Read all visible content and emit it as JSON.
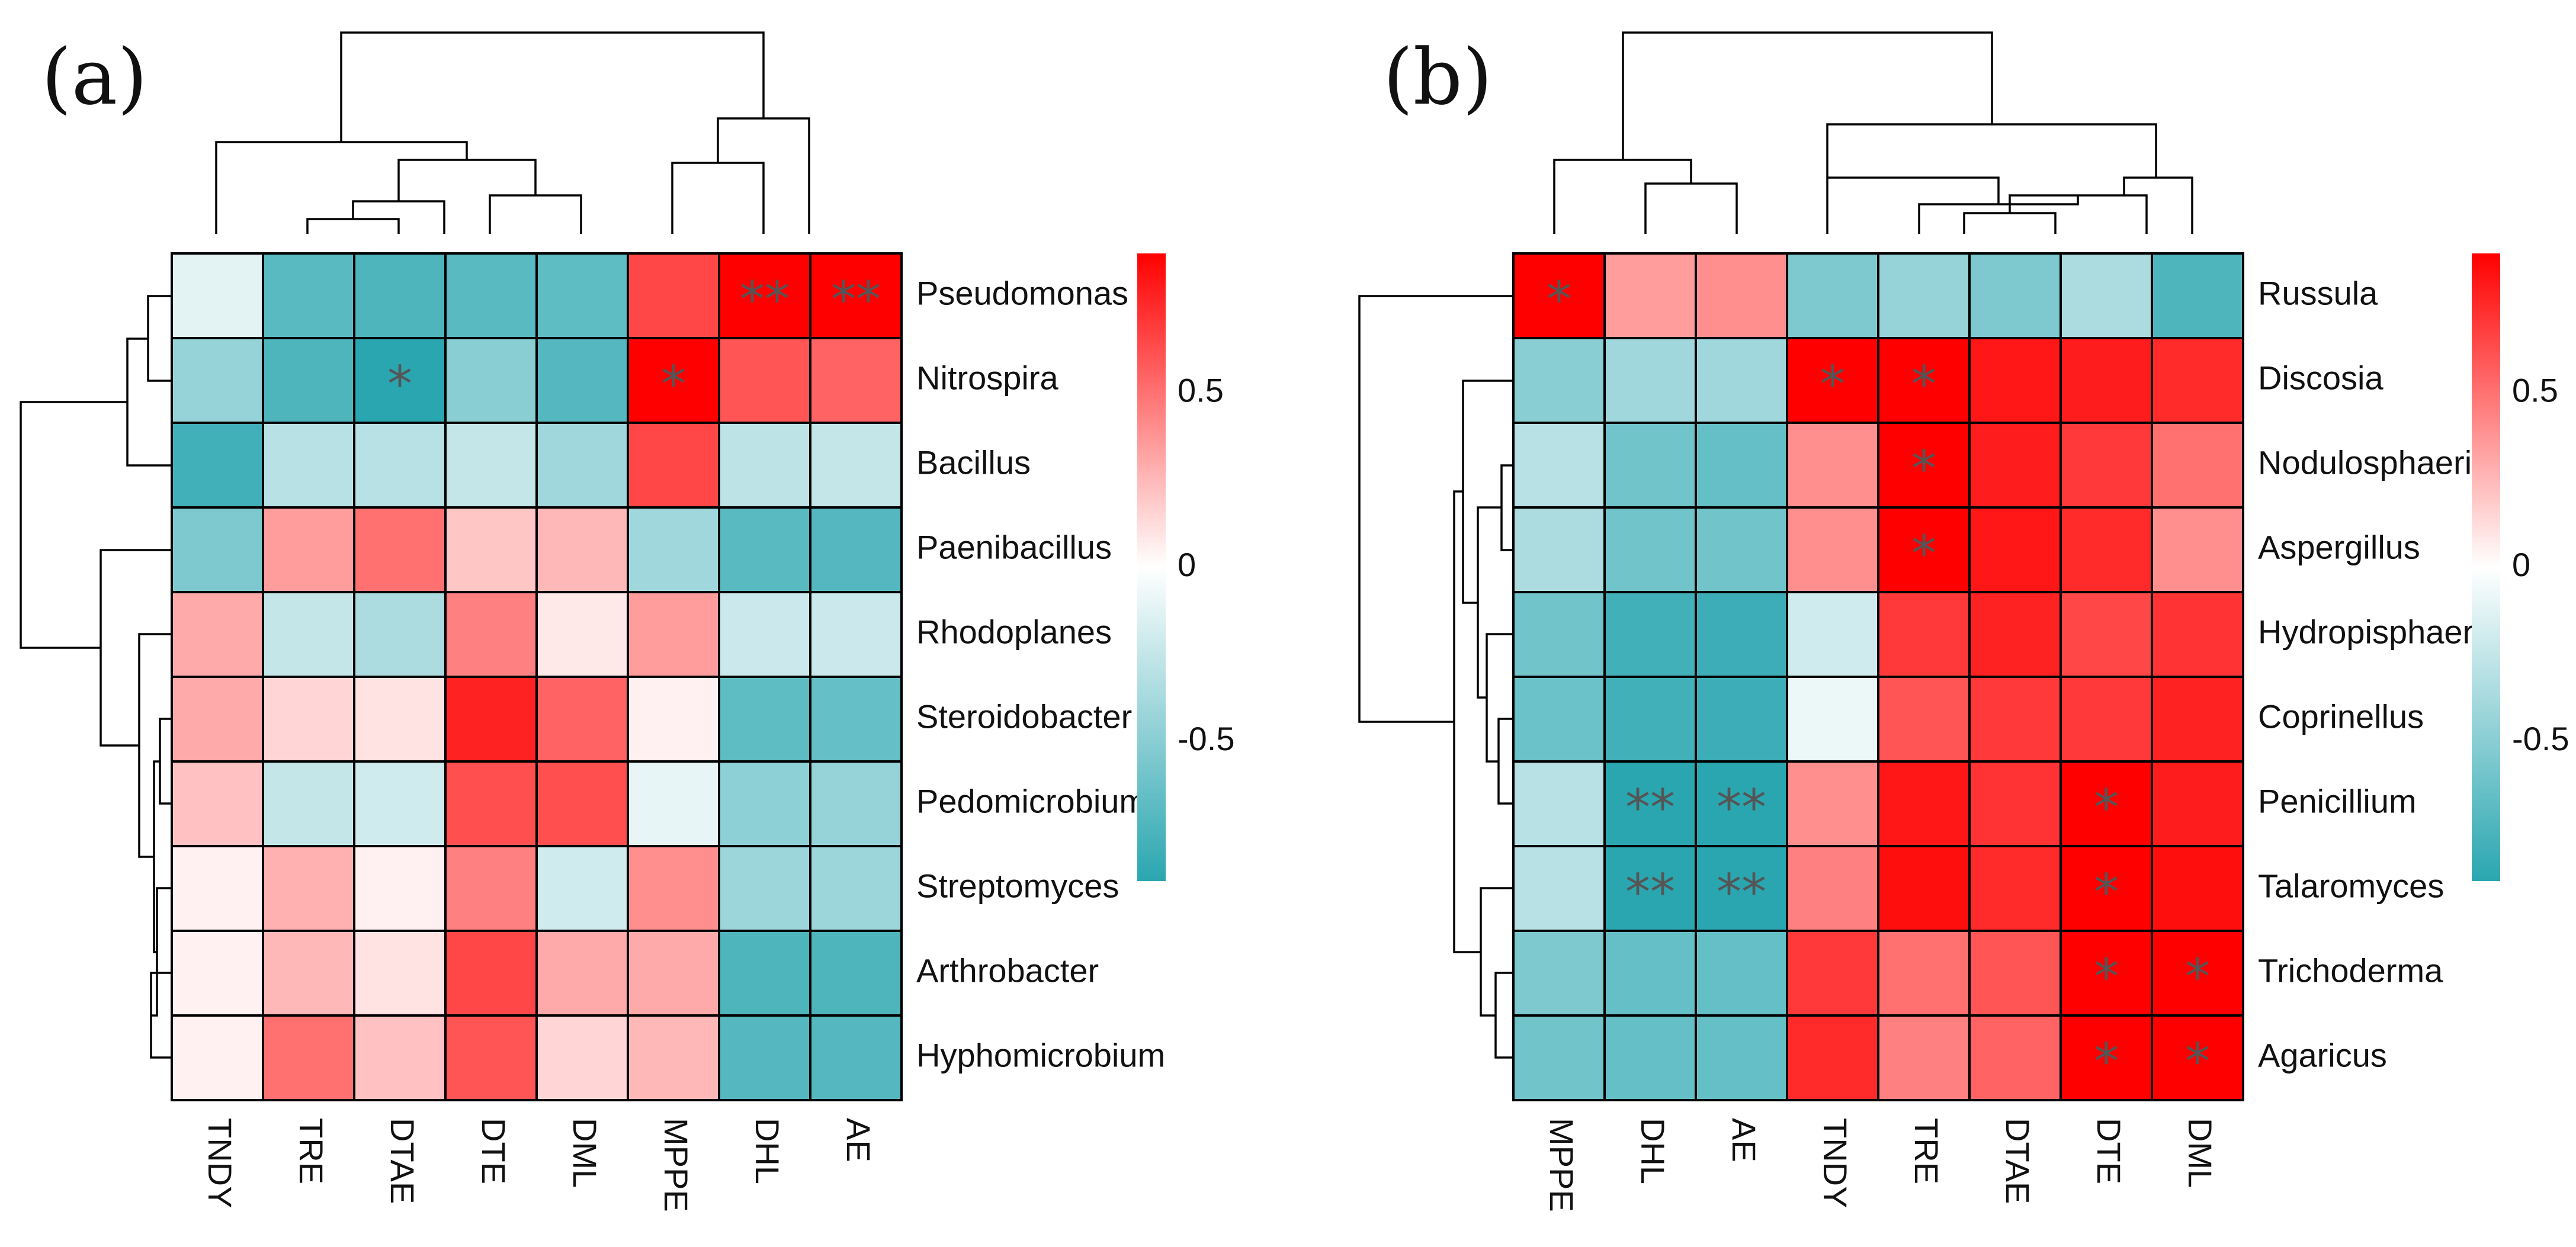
{
  "colors": {
    "low": "#2aa6b0",
    "mid": "#ffffff",
    "high": "#ff0000"
  },
  "chart_data": [
    {
      "type": "heatmap",
      "panel_label": "(a)",
      "columns": [
        "TNDY",
        "TRE",
        "DTAE",
        "DTE",
        "DML",
        "MPPE",
        "DHL",
        "AE"
      ],
      "rows": [
        "Pseudomonas",
        "Nitrospira",
        "Bacillus",
        "Paenibacillus",
        "Rhodoplanes",
        "Steroidobacter",
        "Pedomicrobium",
        "Streptomyces",
        "Arthrobacter",
        "Hyphomicrobium"
      ],
      "values": [
        [
          -0.12,
          -0.7,
          -0.75,
          -0.7,
          -0.68,
          0.65,
          0.95,
          0.95
        ],
        [
          -0.45,
          -0.75,
          -0.9,
          -0.5,
          -0.72,
          0.92,
          0.6,
          0.55
        ],
        [
          -0.8,
          -0.3,
          -0.3,
          -0.25,
          -0.4,
          0.65,
          -0.28,
          -0.25
        ],
        [
          -0.55,
          0.35,
          0.5,
          0.2,
          0.25,
          -0.4,
          -0.7,
          -0.72
        ],
        [
          0.3,
          -0.25,
          -0.35,
          0.45,
          0.08,
          0.35,
          -0.22,
          -0.22
        ],
        [
          0.3,
          0.15,
          0.1,
          0.78,
          0.55,
          0.05,
          -0.68,
          -0.65
        ],
        [
          0.22,
          -0.25,
          -0.2,
          0.62,
          0.62,
          -0.1,
          -0.48,
          -0.45
        ],
        [
          0.05,
          0.28,
          0.05,
          0.45,
          -0.2,
          0.4,
          -0.42,
          -0.42
        ],
        [
          0.05,
          0.25,
          0.1,
          0.65,
          0.3,
          0.3,
          -0.75,
          -0.75
        ],
        [
          0.05,
          0.5,
          0.22,
          0.6,
          0.15,
          0.25,
          -0.72,
          -0.72
        ]
      ],
      "significance": [
        [
          "",
          "",
          "",
          "",
          "",
          "",
          "**",
          "**"
        ],
        [
          "",
          "",
          "*",
          "",
          "",
          "*",
          "",
          ""
        ],
        [
          "",
          "",
          "",
          "",
          "",
          "",
          "",
          ""
        ],
        [
          "",
          "",
          "",
          "",
          "",
          "",
          "",
          ""
        ],
        [
          "",
          "",
          "",
          "",
          "",
          "",
          "",
          ""
        ],
        [
          "",
          "",
          "",
          "",
          "",
          "",
          "",
          ""
        ],
        [
          "",
          "",
          "",
          "",
          "",
          "",
          "",
          ""
        ],
        [
          "",
          "",
          "",
          "",
          "",
          "",
          "",
          ""
        ],
        [
          "",
          "",
          "",
          "",
          "",
          "",
          "",
          ""
        ],
        [
          "",
          "",
          "",
          "",
          "",
          "",
          "",
          ""
        ]
      ],
      "legend": {
        "ticks": [
          0.5,
          0,
          -0.5
        ],
        "tick_labels": [
          "0.5",
          "0",
          "-0.5"
        ],
        "range": [
          -0.9,
          0.9
        ]
      }
    },
    {
      "type": "heatmap",
      "panel_label": "(b)",
      "columns": [
        "MPPE",
        "DHL",
        "AE",
        "TNDY",
        "TRE",
        "DTAE",
        "DTE",
        "DML"
      ],
      "rows": [
        "Russula",
        "Discosia",
        "Nodulosphaeria",
        "Aspergillus",
        "Hydropisphaera",
        "Coprinellus",
        "Penicillium",
        "Talaromyces",
        "Trichoderma",
        "Agaricus"
      ],
      "values": [
        [
          0.92,
          0.35,
          0.4,
          -0.55,
          -0.45,
          -0.55,
          -0.35,
          -0.75
        ],
        [
          -0.5,
          -0.4,
          -0.4,
          0.92,
          0.95,
          0.82,
          0.8,
          0.75
        ],
        [
          -0.3,
          -0.6,
          -0.65,
          0.4,
          0.95,
          0.8,
          0.7,
          0.5
        ],
        [
          -0.35,
          -0.6,
          -0.6,
          0.4,
          0.95,
          0.82,
          0.75,
          0.4
        ],
        [
          -0.6,
          -0.8,
          -0.82,
          -0.2,
          0.7,
          0.78,
          0.65,
          0.72
        ],
        [
          -0.62,
          -0.8,
          -0.82,
          -0.08,
          0.6,
          0.7,
          0.7,
          0.78
        ],
        [
          -0.3,
          -0.92,
          -0.92,
          0.4,
          0.82,
          0.72,
          0.95,
          0.8
        ],
        [
          -0.3,
          -0.92,
          -0.92,
          0.45,
          0.85,
          0.75,
          0.95,
          0.85
        ],
        [
          -0.55,
          -0.65,
          -0.65,
          0.7,
          0.5,
          0.6,
          0.95,
          0.95
        ],
        [
          -0.6,
          -0.65,
          -0.65,
          0.75,
          0.45,
          0.55,
          0.95,
          0.95
        ]
      ],
      "significance": [
        [
          "*",
          "",
          "",
          "",
          "",
          "",
          "",
          ""
        ],
        [
          "",
          "",
          "",
          "*",
          "*",
          "",
          "",
          ""
        ],
        [
          "",
          "",
          "",
          "",
          "*",
          "",
          "",
          ""
        ],
        [
          "",
          "",
          "",
          "",
          "*",
          "",
          "",
          ""
        ],
        [
          "",
          "",
          "",
          "",
          "",
          "",
          "",
          ""
        ],
        [
          "",
          "",
          "",
          "",
          "",
          "",
          "",
          ""
        ],
        [
          "",
          "**",
          "**",
          "",
          "",
          "",
          "*",
          ""
        ],
        [
          "",
          "**",
          "**",
          "",
          "",
          "",
          "*",
          ""
        ],
        [
          "",
          "",
          "",
          "",
          "",
          "",
          "*",
          "*"
        ],
        [
          "",
          "",
          "",
          "",
          "",
          "",
          "*",
          "*"
        ]
      ],
      "legend": {
        "ticks": [
          0.5,
          0,
          -0.5
        ],
        "tick_labels": [
          "0.5",
          "0",
          "-0.5"
        ],
        "range": [
          -0.9,
          0.9
        ]
      }
    }
  ]
}
